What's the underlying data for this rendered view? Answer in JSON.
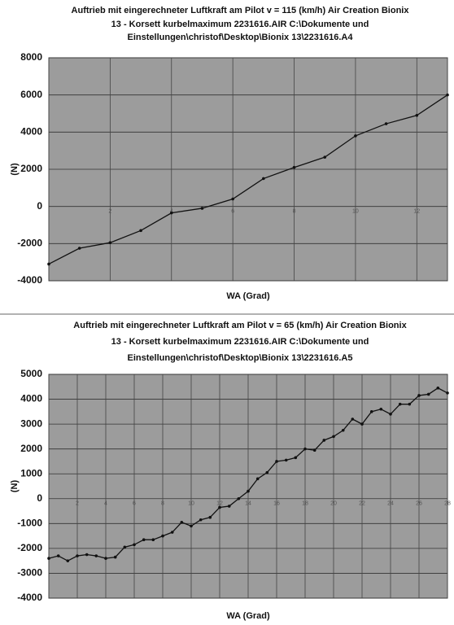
{
  "chart_data": [
    {
      "type": "line",
      "title": [
        "Auftrieb mit eingerechneter Luftkraft am Pilot      v =  115 (km/h)  Air Creation  Bionix",
        "13  -  Korsett kurbelmaximum  2231616.AIR  C:\\Dokumente und",
        "Einstellungen\\christof\\Desktop\\Bionix 13\\2231616.A4"
      ],
      "x_label": "WA (Grad)",
      "y_label": "(N)",
      "x": [
        0,
        1,
        2,
        3,
        4,
        5,
        6,
        7,
        8,
        9,
        10,
        11,
        12,
        13
      ],
      "series": [
        {
          "color": "#111111",
          "values": [
            -3100,
            -2250,
            -1950,
            -1300,
            -350,
            -100,
            400,
            1500,
            2100,
            2650,
            3800,
            4450,
            4900,
            6000
          ]
        }
      ],
      "xlim": [
        0,
        13
      ],
      "xticks": [
        2,
        4,
        6,
        8,
        10,
        12
      ],
      "ylim": [
        -4000,
        8000
      ],
      "yticks": [
        -4000,
        -2000,
        0,
        2000,
        4000,
        6000,
        8000
      ],
      "grid": true
    },
    {
      "type": "line",
      "title": [
        "Auftrieb mit eingerechneter Luftkraft am Pilot      v =  65 (km/h)  Air Creation  Bionix",
        "13  -  Korsett kurbelmaximum  2231616.AIR  C:\\Dokumente und",
        "Einstellungen\\christof\\Desktop\\Bionix 13\\2231616.A5"
      ],
      "x_label": "WA (Grad)",
      "y_label": "(N)",
      "x": [
        0,
        0.67,
        1.33,
        2,
        2.67,
        3.33,
        4,
        4.67,
        5.33,
        6,
        6.67,
        7.33,
        8,
        8.67,
        9.33,
        10,
        10.67,
        11.33,
        12,
        12.67,
        13.33,
        14,
        14.67,
        15.33,
        16,
        16.67,
        17.33,
        18,
        18.67,
        19.33,
        20,
        20.67,
        21.33,
        22,
        22.67,
        23.33,
        24,
        24.67,
        25.33,
        26,
        26.67,
        27.33,
        28
      ],
      "series": [
        {
          "color": "#111111",
          "values": [
            -2400,
            -2300,
            -2500,
            -2300,
            -2250,
            -2300,
            -2400,
            -2350,
            -1950,
            -1850,
            -1650,
            -1650,
            -1500,
            -1350,
            -950,
            -1100,
            -850,
            -750,
            -350,
            -300,
            0,
            300,
            800,
            1050,
            1500,
            1550,
            1650,
            2000,
            1950,
            2350,
            2500,
            2750,
            3200,
            3000,
            3500,
            3600,
            3400,
            3800,
            3800,
            4150,
            4200,
            4450,
            4250
          ]
        }
      ],
      "xlim": [
        0,
        28
      ],
      "xticks": [
        2,
        4,
        6,
        8,
        10,
        12,
        14,
        16,
        18,
        20,
        22,
        24,
        26,
        28
      ],
      "ylim": [
        -4000,
        5000
      ],
      "yticks": [
        -4000,
        -3000,
        -2000,
        -1000,
        0,
        1000,
        2000,
        3000,
        4000,
        5000
      ],
      "grid": true
    }
  ]
}
